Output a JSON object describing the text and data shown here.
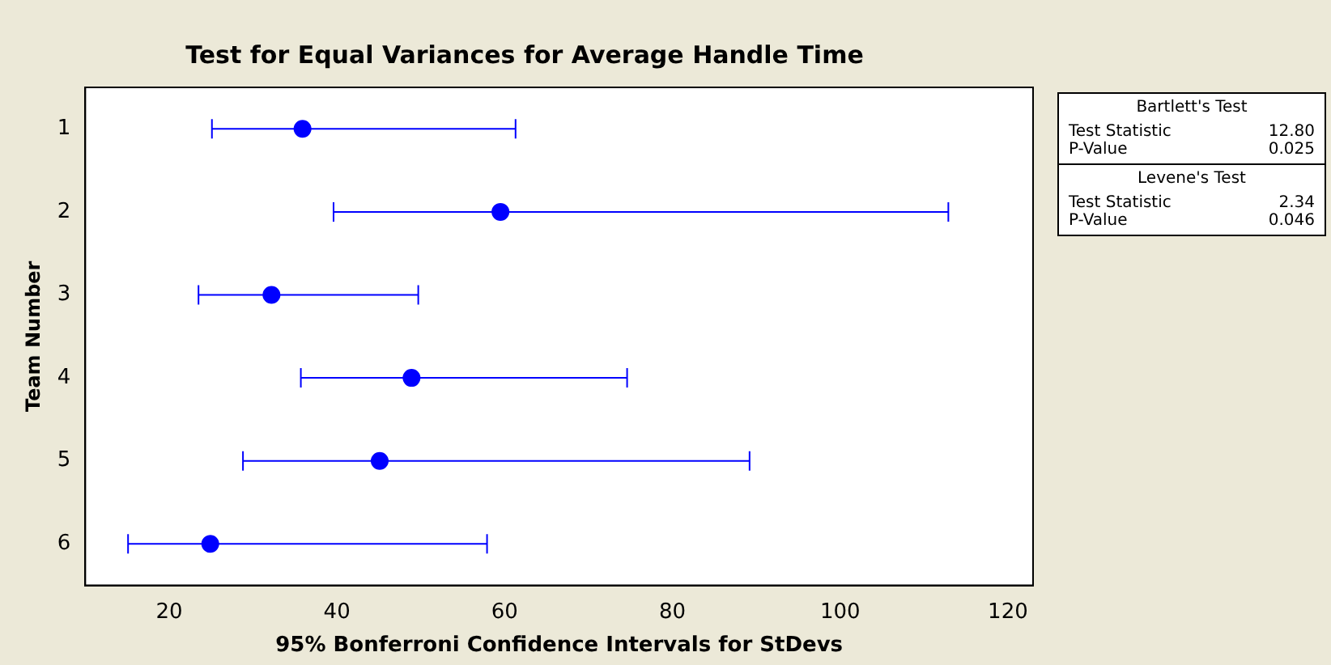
{
  "chart_data": {
    "type": "scatter",
    "orientation": "horizontal",
    "title": "Test for Equal Variances for Average Handle Time",
    "xlabel": "95% Bonferroni Confidence Intervals for StDevs",
    "ylabel": "Team Number",
    "categories": [
      "1",
      "2",
      "3",
      "4",
      "5",
      "6"
    ],
    "values": [
      35.9,
      59.5,
      32.2,
      48.9,
      45.1,
      24.9
    ],
    "errors": [
      [
        25.1,
        61.3
      ],
      [
        39.6,
        112.9
      ],
      [
        23.5,
        49.7
      ],
      [
        35.7,
        74.6
      ],
      [
        28.8,
        89.2
      ],
      [
        15.1,
        57.9
      ]
    ],
    "color": "#0000ff",
    "marker": "circle",
    "grid": false,
    "legend": false,
    "xlim": [
      10,
      123
    ],
    "xticks": [
      20,
      40,
      60,
      80,
      100,
      120
    ],
    "annotations": [
      "Bartlett's Test",
      "Test Statistic",
      "12.80",
      "P-Value",
      "0.025",
      "Levene's Test",
      "Test Statistic",
      "2.34",
      "P-Value",
      "0.046"
    ]
  }
}
